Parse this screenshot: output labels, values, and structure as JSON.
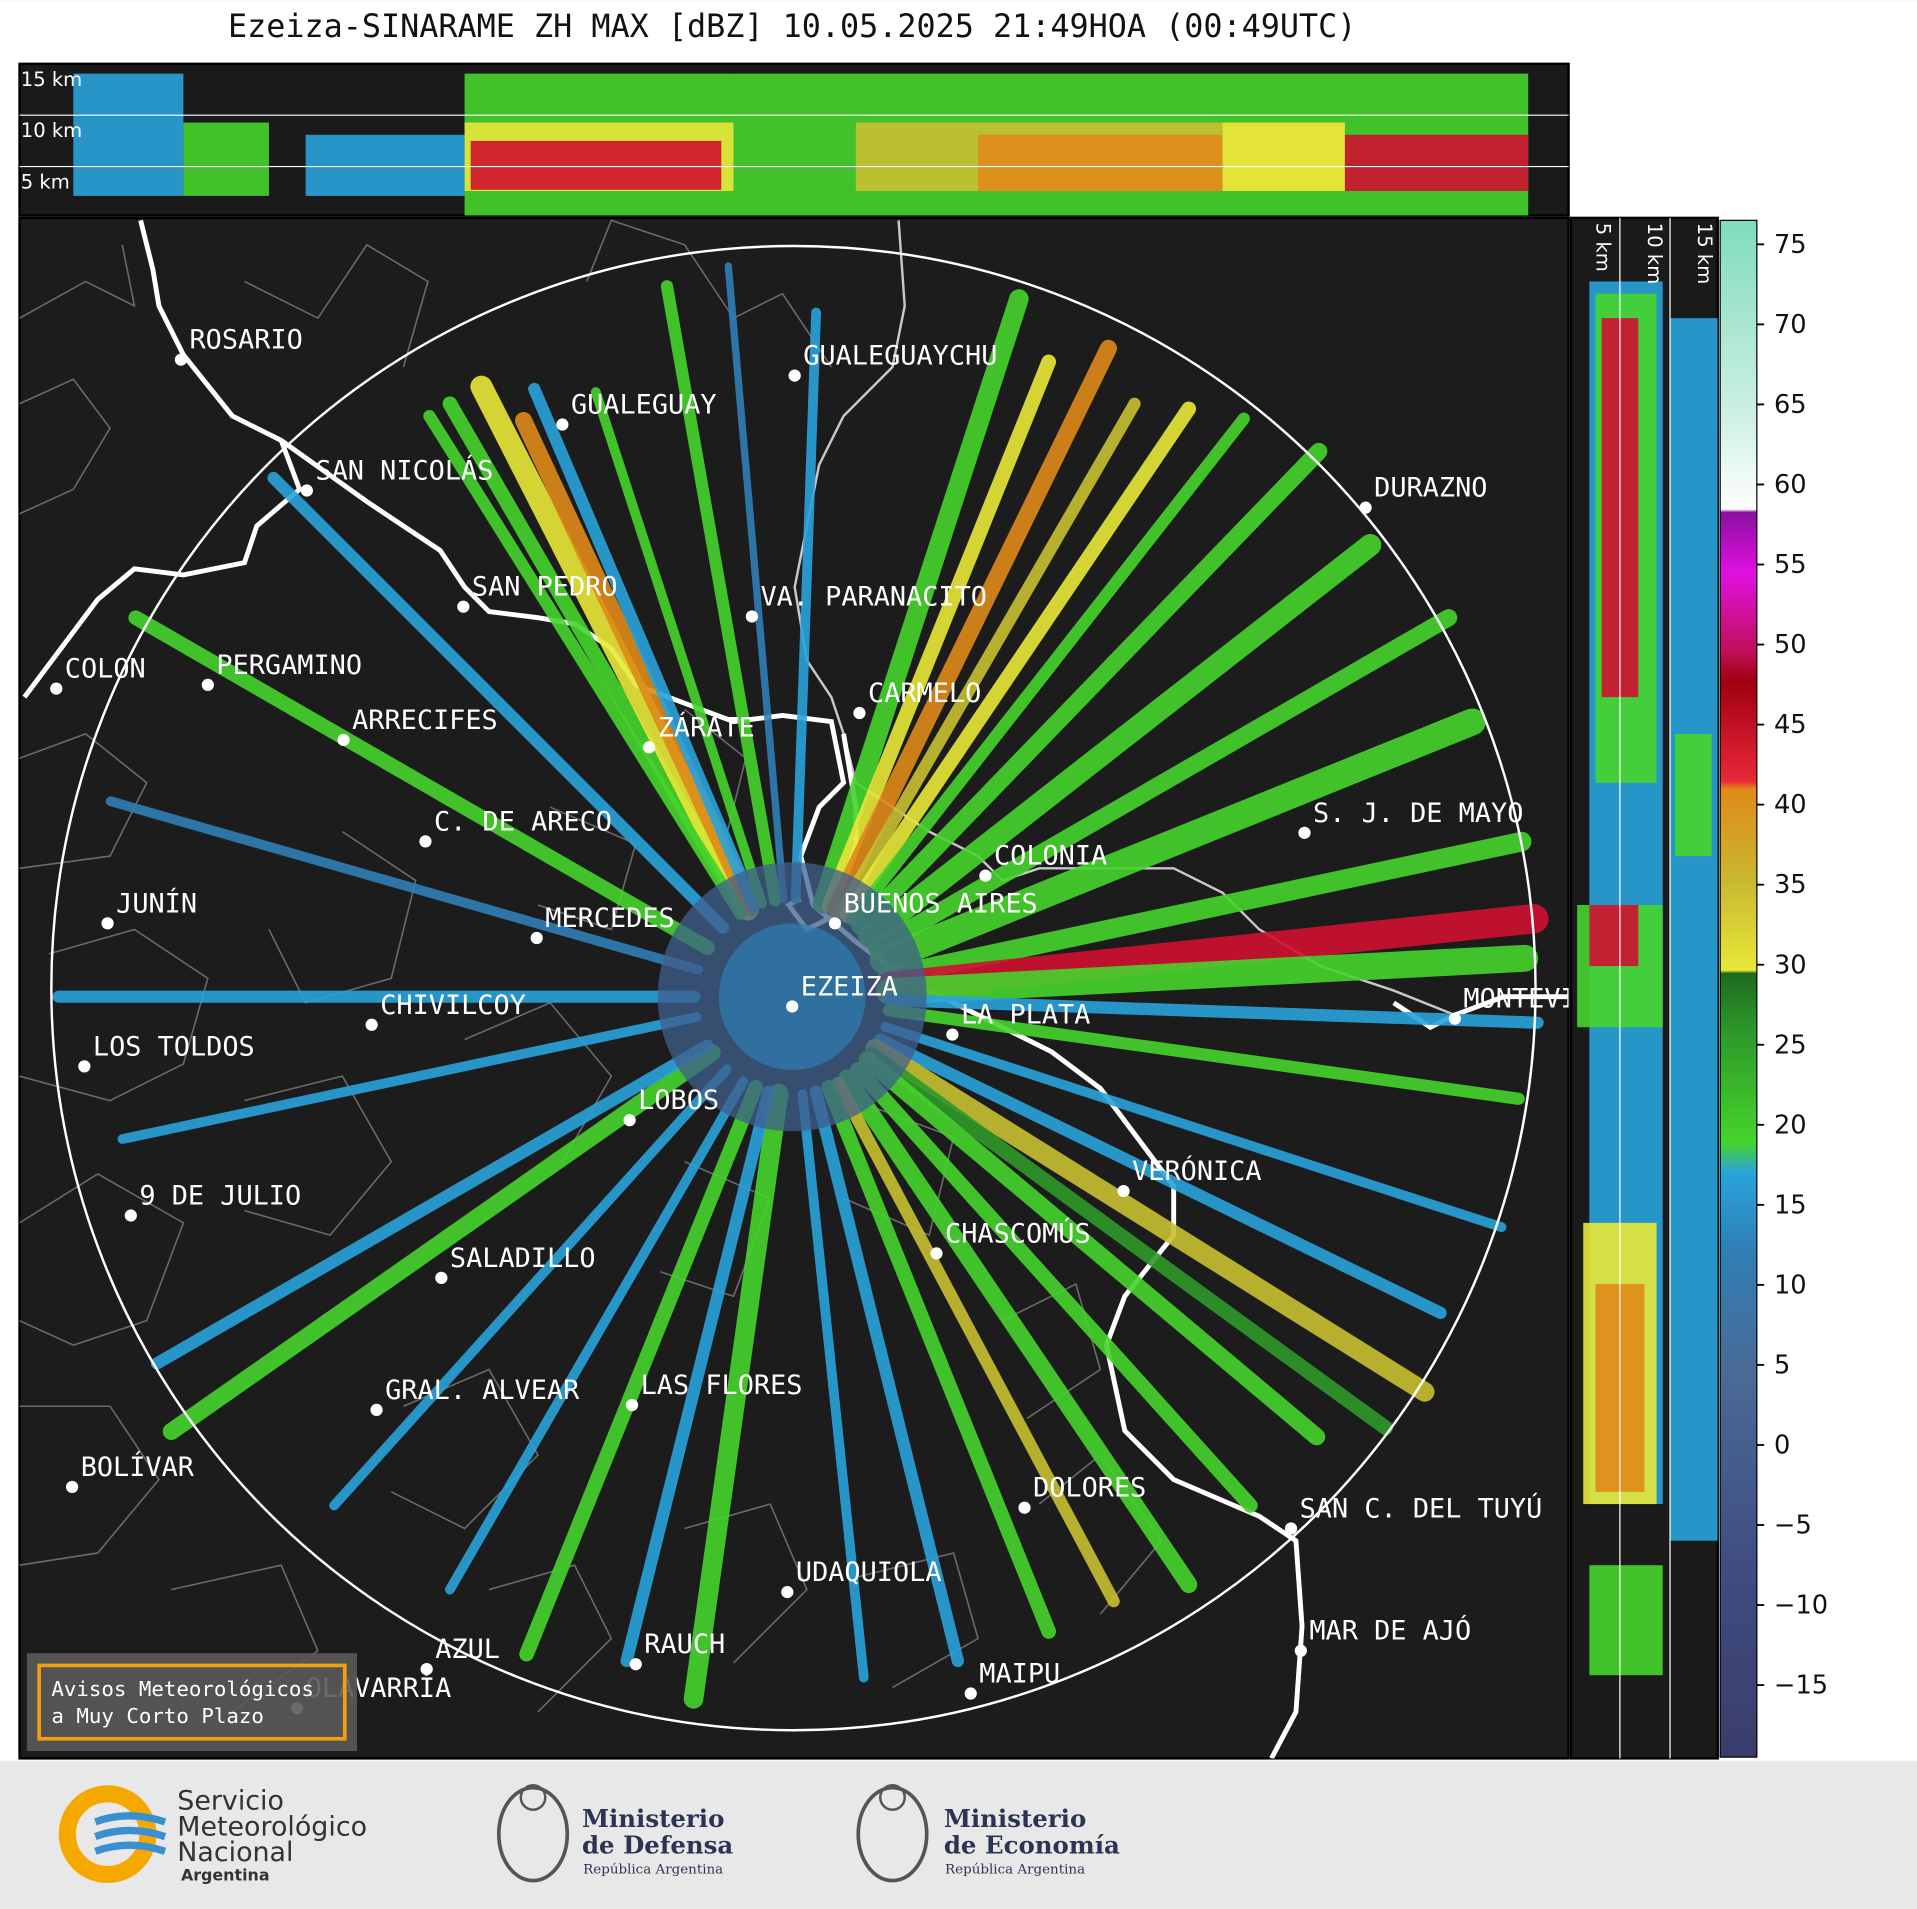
{
  "title": "Ezeiza-SINARAME ZH MAX [dBZ] 10.05.2025 21:49HOA (00:49UTC)",
  "top_panel": {
    "labels": [
      "15 km",
      "10 km",
      "5 km"
    ]
  },
  "right_panel": {
    "labels": [
      "5 km",
      "10 km",
      "15 km"
    ]
  },
  "cities": [
    "ROSARIO",
    "GUALEGUAYCHU",
    "GUALEGUAY",
    "SAN NICOLÁS",
    "DURAZNO",
    "SAN PEDRO",
    "VA. PARANACITO",
    "COLON",
    "PERGAMINO",
    "CARMELO",
    "ARRECIFES",
    "ZÁRATE",
    "C. DE ARECO",
    "S. J. DE MAYO",
    "COLONIA",
    "JUNÍN",
    "MERCEDES",
    "BUENOS AIRES",
    "EZEIZA",
    "MONTEVIDEO",
    "LA PLATA",
    "CHIVILCOY",
    "LOS TOLDOS",
    "LOBOS",
    "VERÓNICA",
    "9 DE JULIO",
    "CHASCOMÚS",
    "SALADILLO",
    "GRAL. ALVEAR",
    "LAS FLORES",
    "BOLÍVAR",
    "DOLORES",
    "SAN C. DEL TUYÚ",
    "UDAQUIOLA",
    "MAR DE AJÓ",
    "AZUL",
    "RAUCH",
    "OLAVARRÍA",
    "MAIPU"
  ],
  "colorbar": {
    "lim": [
      -19.5,
      76.5
    ],
    "ticks": [
      {
        "value": -15,
        "label": "−15"
      },
      {
        "value": -10,
        "label": "−10"
      },
      {
        "value": -5,
        "label": "−5"
      },
      0,
      5,
      10,
      15,
      20,
      25,
      30,
      35,
      40,
      45,
      50,
      55,
      60,
      65,
      70,
      75
    ]
  },
  "warning_box": {
    "lines": [
      "Avisos Meteorológicos",
      "a Muy Corto Plazo"
    ]
  },
  "logos": {
    "smn": [
      "Servicio",
      "Meteorológico",
      "Nacional",
      "Argentina"
    ],
    "defensa": [
      "Ministerio",
      "de Defensa",
      "República Argentina"
    ],
    "economia": [
      "Ministerio",
      "de Economía",
      "República Argentina"
    ]
  }
}
